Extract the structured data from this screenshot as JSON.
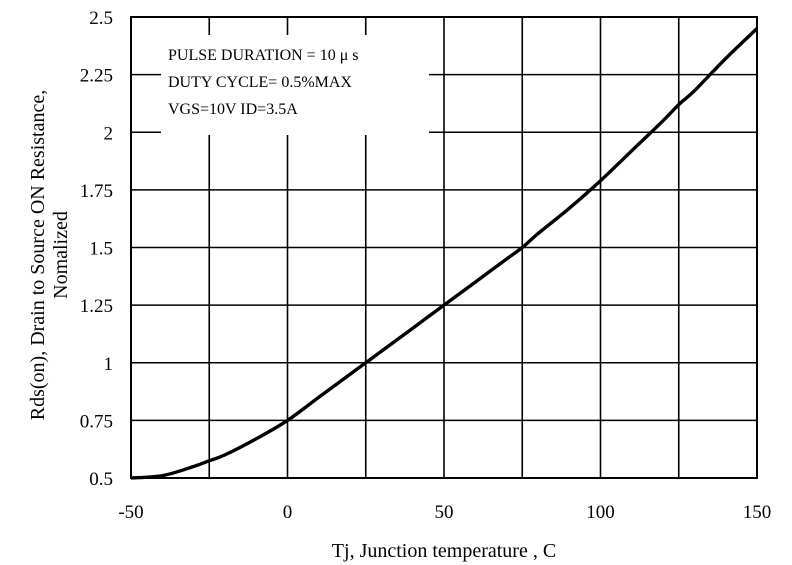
{
  "chart_data": {
    "type": "line",
    "title": "",
    "xlabel": "Tj, Junction temperature , C",
    "ylabel_line1": "Rds(on), Drain to Source ON  Resistance,",
    "ylabel_line2": "Nomalized",
    "xlim": [
      -50,
      150
    ],
    "ylim": [
      0.5,
      2.5
    ],
    "xticks": [
      -50,
      0,
      50,
      100,
      150
    ],
    "xtick_labels": [
      "-50",
      "0",
      "50",
      "100",
      "150"
    ],
    "yticks": [
      0.5,
      0.75,
      1,
      1.25,
      1.5,
      1.75,
      2,
      2.25,
      2.5
    ],
    "ytick_labels": [
      "0.5",
      "0.75",
      "1",
      "1.25",
      "1.5",
      "1.75",
      "2",
      "2.25",
      "2.5"
    ],
    "grid": true,
    "annotations": [
      "PULSE    DURATION = 10 μ s",
      "DUTY   CYCLE= 0.5%MAX",
      "VGS=10V    ID=3.5A"
    ],
    "series": [
      {
        "x": [
          -50,
          -40,
          -30,
          -25,
          -20,
          -10,
          0,
          10,
          20,
          25,
          30,
          40,
          50,
          60,
          70,
          75,
          80,
          90,
          100,
          110,
          120,
          125,
          130,
          140,
          150
        ],
        "y": [
          0.5,
          0.51,
          0.55,
          0.575,
          0.6,
          0.67,
          0.75,
          0.85,
          0.95,
          1.0,
          1.05,
          1.15,
          1.25,
          1.35,
          1.45,
          1.5,
          1.56,
          1.67,
          1.79,
          1.92,
          2.05,
          2.12,
          2.18,
          2.32,
          2.45
        ]
      }
    ],
    "colors": {
      "line": "#000000",
      "grid": "#000000",
      "background": "#ffffff"
    }
  }
}
